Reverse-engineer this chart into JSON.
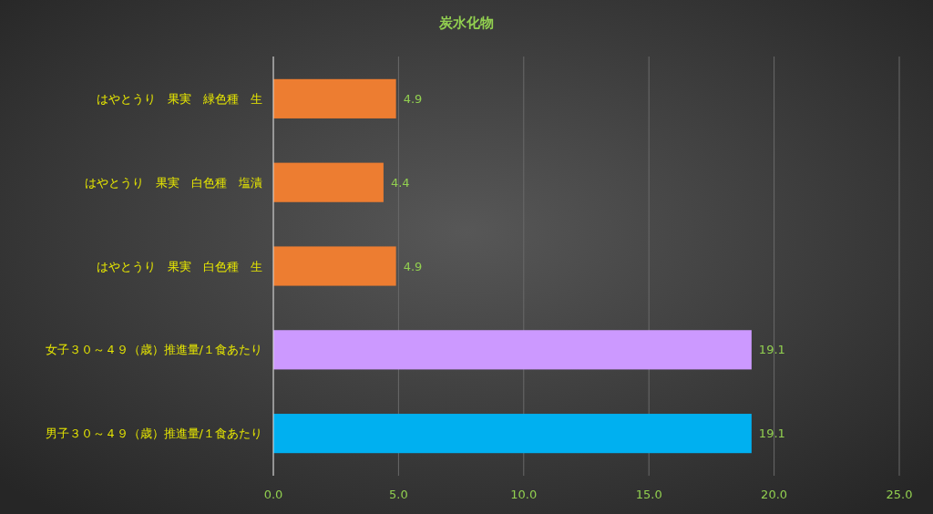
{
  "chart_data": {
    "type": "bar",
    "orientation": "horizontal",
    "title": "炭水化物",
    "categories": [
      "はやとうり　果実　緑色種　生",
      "はやとうり　果実　白色種　塩漬",
      "はやとうり　果実　白色種　生",
      "女子３０～４９（歳）推進量/１食あたり",
      "男子３０～４９（歳）推進量/１食あたり"
    ],
    "values": [
      4.9,
      4.4,
      4.9,
      19.1,
      19.1
    ],
    "colors": [
      "#ed7d31",
      "#ed7d31",
      "#ed7d31",
      "#cc99ff",
      "#00b0f0"
    ],
    "xlim": [
      0,
      25
    ],
    "xticks": [
      {
        "value": 0,
        "label": "0.0"
      },
      {
        "value": 5,
        "label": "5.0"
      },
      {
        "value": 10,
        "label": "10.0"
      },
      {
        "value": 15,
        "label": "15.0"
      },
      {
        "value": 20,
        "label": "20.0"
      },
      {
        "value": 25,
        "label": "25.0"
      }
    ],
    "grid": "x",
    "data_labels": true
  }
}
